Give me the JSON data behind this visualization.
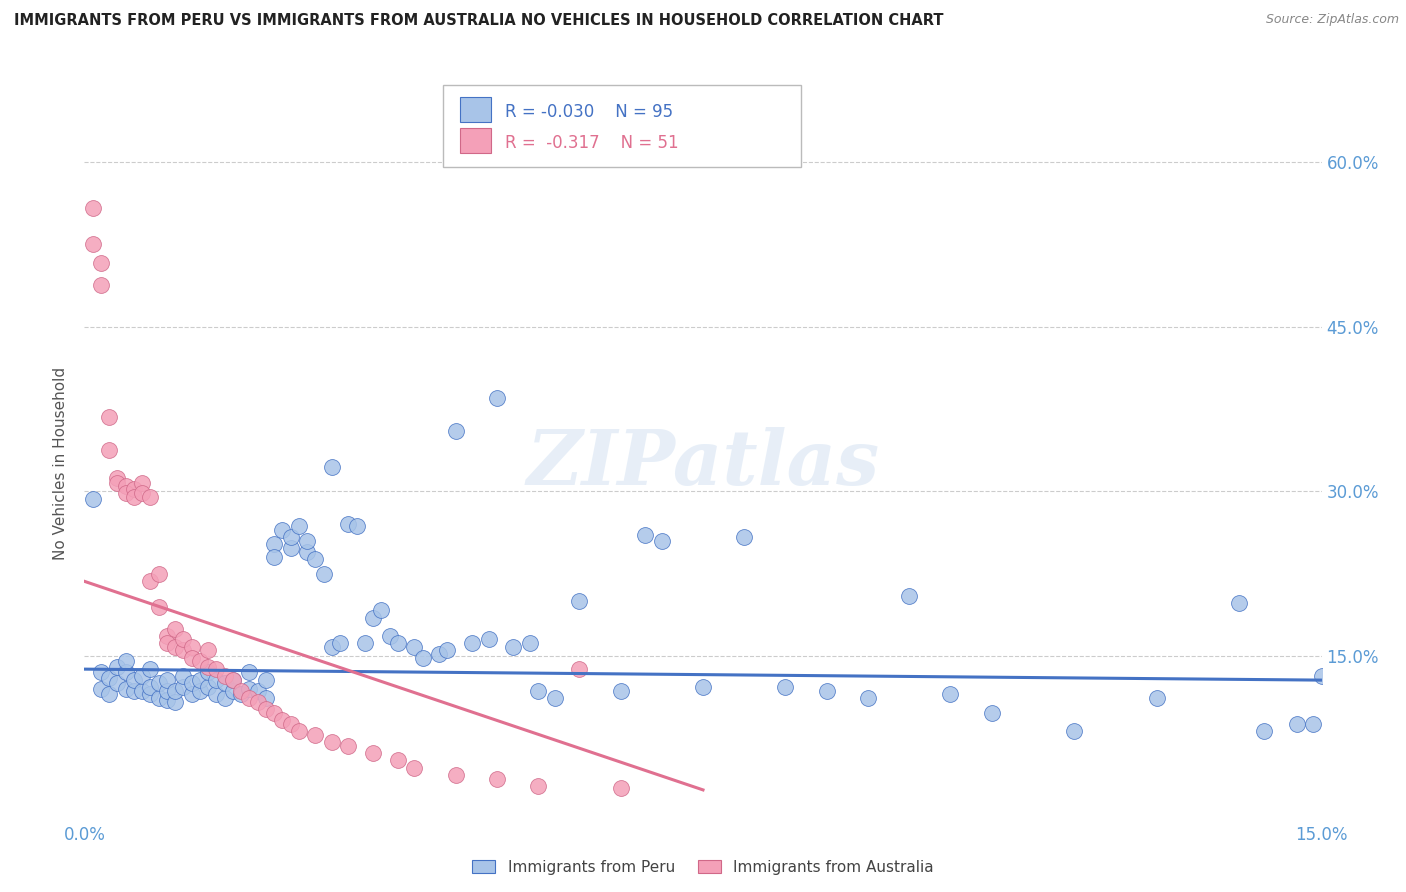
{
  "title": "IMMIGRANTS FROM PERU VS IMMIGRANTS FROM AUSTRALIA NO VEHICLES IN HOUSEHOLD CORRELATION CHART",
  "source": "Source: ZipAtlas.com",
  "ylabel": "No Vehicles in Household",
  "legend_label_blue": "Immigrants from Peru",
  "legend_label_pink": "Immigrants from Australia",
  "R_blue": -0.03,
  "N_blue": 95,
  "R_pink": -0.317,
  "N_pink": 51,
  "xlim": [
    0.0,
    0.15
  ],
  "ylim": [
    0.0,
    0.65
  ],
  "xticks": [
    0.0,
    0.15
  ],
  "xticklabels": [
    "0.0%",
    "15.0%"
  ],
  "yticks": [
    0.0,
    0.15,
    0.3,
    0.45,
    0.6
  ],
  "yticklabels": [
    "",
    "15.0%",
    "30.0%",
    "45.0%",
    "60.0%"
  ],
  "color_blue": "#a8c4e8",
  "color_pink": "#f4a0b8",
  "line_color_blue": "#4472c4",
  "line_color_pink": "#e07090",
  "background_color": "#ffffff",
  "grid_color": "#cccccc",
  "title_color": "#222222",
  "source_color": "#888888",
  "blue_scatter_x": [
    0.001,
    0.002,
    0.002,
    0.003,
    0.003,
    0.004,
    0.004,
    0.005,
    0.005,
    0.005,
    0.006,
    0.006,
    0.007,
    0.007,
    0.008,
    0.008,
    0.008,
    0.009,
    0.009,
    0.01,
    0.01,
    0.01,
    0.011,
    0.011,
    0.012,
    0.012,
    0.013,
    0.013,
    0.014,
    0.014,
    0.015,
    0.015,
    0.016,
    0.016,
    0.017,
    0.017,
    0.018,
    0.018,
    0.019,
    0.02,
    0.02,
    0.021,
    0.022,
    0.022,
    0.023,
    0.023,
    0.024,
    0.025,
    0.025,
    0.026,
    0.027,
    0.027,
    0.028,
    0.029,
    0.03,
    0.03,
    0.031,
    0.032,
    0.033,
    0.034,
    0.035,
    0.036,
    0.037,
    0.038,
    0.04,
    0.041,
    0.043,
    0.044,
    0.045,
    0.047,
    0.049,
    0.05,
    0.052,
    0.054,
    0.055,
    0.057,
    0.06,
    0.065,
    0.068,
    0.07,
    0.075,
    0.08,
    0.085,
    0.09,
    0.095,
    0.1,
    0.105,
    0.11,
    0.12,
    0.13,
    0.14,
    0.143,
    0.147,
    0.149,
    0.15
  ],
  "blue_scatter_y": [
    0.293,
    0.12,
    0.135,
    0.115,
    0.13,
    0.125,
    0.14,
    0.12,
    0.135,
    0.145,
    0.118,
    0.128,
    0.118,
    0.132,
    0.115,
    0.122,
    0.138,
    0.112,
    0.125,
    0.11,
    0.118,
    0.128,
    0.108,
    0.118,
    0.122,
    0.132,
    0.115,
    0.125,
    0.118,
    0.128,
    0.122,
    0.135,
    0.115,
    0.128,
    0.112,
    0.125,
    0.118,
    0.128,
    0.115,
    0.12,
    0.135,
    0.118,
    0.112,
    0.128,
    0.252,
    0.24,
    0.265,
    0.248,
    0.258,
    0.268,
    0.245,
    0.255,
    0.238,
    0.225,
    0.322,
    0.158,
    0.162,
    0.27,
    0.268,
    0.162,
    0.185,
    0.192,
    0.168,
    0.162,
    0.158,
    0.148,
    0.152,
    0.155,
    0.355,
    0.162,
    0.165,
    0.385,
    0.158,
    0.162,
    0.118,
    0.112,
    0.2,
    0.118,
    0.26,
    0.255,
    0.122,
    0.258,
    0.122,
    0.118,
    0.112,
    0.205,
    0.115,
    0.098,
    0.082,
    0.112,
    0.198,
    0.082,
    0.088,
    0.088,
    0.132
  ],
  "pink_scatter_x": [
    0.001,
    0.001,
    0.002,
    0.002,
    0.003,
    0.003,
    0.004,
    0.004,
    0.005,
    0.005,
    0.006,
    0.006,
    0.007,
    0.007,
    0.008,
    0.008,
    0.009,
    0.009,
    0.01,
    0.01,
    0.011,
    0.011,
    0.012,
    0.012,
    0.013,
    0.013,
    0.014,
    0.015,
    0.015,
    0.016,
    0.017,
    0.018,
    0.019,
    0.02,
    0.021,
    0.022,
    0.023,
    0.024,
    0.025,
    0.026,
    0.028,
    0.03,
    0.032,
    0.035,
    0.038,
    0.04,
    0.045,
    0.05,
    0.055,
    0.06,
    0.065
  ],
  "pink_scatter_y": [
    0.558,
    0.525,
    0.508,
    0.488,
    0.368,
    0.338,
    0.312,
    0.308,
    0.305,
    0.298,
    0.302,
    0.295,
    0.308,
    0.298,
    0.295,
    0.218,
    0.195,
    0.225,
    0.168,
    0.162,
    0.158,
    0.175,
    0.155,
    0.165,
    0.158,
    0.148,
    0.145,
    0.14,
    0.155,
    0.138,
    0.132,
    0.128,
    0.118,
    0.112,
    0.108,
    0.102,
    0.098,
    0.092,
    0.088,
    0.082,
    0.078,
    0.072,
    0.068,
    0.062,
    0.055,
    0.048,
    0.042,
    0.038,
    0.032,
    0.138,
    0.03
  ],
  "blue_line_x": [
    0.0,
    0.15
  ],
  "blue_line_y": [
    0.138,
    0.128
  ],
  "pink_line_x": [
    0.0,
    0.075
  ],
  "pink_line_y": [
    0.218,
    0.028
  ]
}
